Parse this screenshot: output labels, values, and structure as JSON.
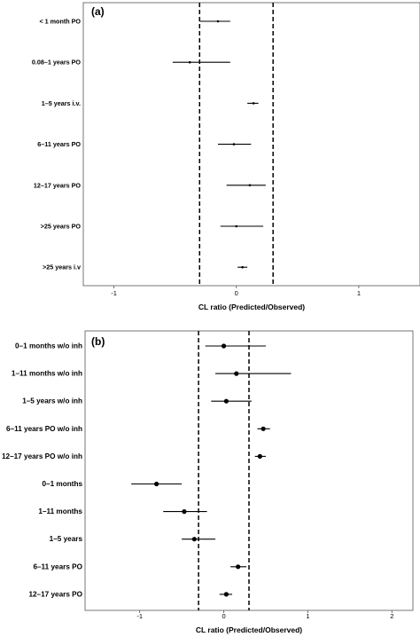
{
  "chart_data": [
    {
      "type": "forest",
      "panel_label": "(a)",
      "xlabel": "CL  ratio (Predicted/Observed)",
      "xlim": [
        -1.25,
        1.5
      ],
      "xticks": [
        "-1",
        "0",
        "1"
      ],
      "reference_lines": [
        -0.3,
        0.3
      ],
      "categories": [
        "< 1 month PO",
        "0.08–1 years PO",
        "1–5  years i.v.",
        "6–11  years PO",
        "12–17  years PO",
        ">25  years PO",
        ">25  years i.v"
      ],
      "estimate": [
        -0.15,
        -0.38,
        0.14,
        -0.02,
        0.11,
        0.0,
        0.05
      ],
      "lower": [
        -0.3,
        -0.52,
        0.09,
        -0.15,
        -0.08,
        -0.13,
        0.01
      ],
      "upper": [
        -0.05,
        -0.05,
        0.18,
        0.12,
        0.24,
        0.22,
        0.09
      ]
    },
    {
      "type": "forest",
      "panel_label": "(b)",
      "xlabel": "CL  ratio (Predicted/Observed)",
      "xlim": [
        -1.65,
        2.25
      ],
      "xticks": [
        "-1",
        "0",
        "1",
        "2"
      ],
      "reference_lines": [
        -0.3,
        0.3
      ],
      "categories": [
        "0–1 months w/o inh",
        "1–11 months w/o inh",
        "1–5 years w/o inh",
        "6–11  years PO w/o inh",
        "12–17  years PO w/o inh",
        "0–1 months",
        "1–11 months",
        "1–5 years",
        "6–11  years PO",
        "12–17  years PO"
      ],
      "estimate": [
        0.0,
        0.15,
        0.03,
        0.47,
        0.43,
        -0.8,
        -0.47,
        -0.35,
        0.17,
        0.03
      ],
      "lower": [
        -0.22,
        -0.1,
        -0.15,
        0.4,
        0.37,
        -1.1,
        -0.72,
        -0.5,
        0.08,
        -0.05
      ],
      "upper": [
        0.5,
        0.8,
        0.33,
        0.55,
        0.5,
        -0.5,
        -0.2,
        -0.1,
        0.27,
        0.1
      ]
    }
  ]
}
